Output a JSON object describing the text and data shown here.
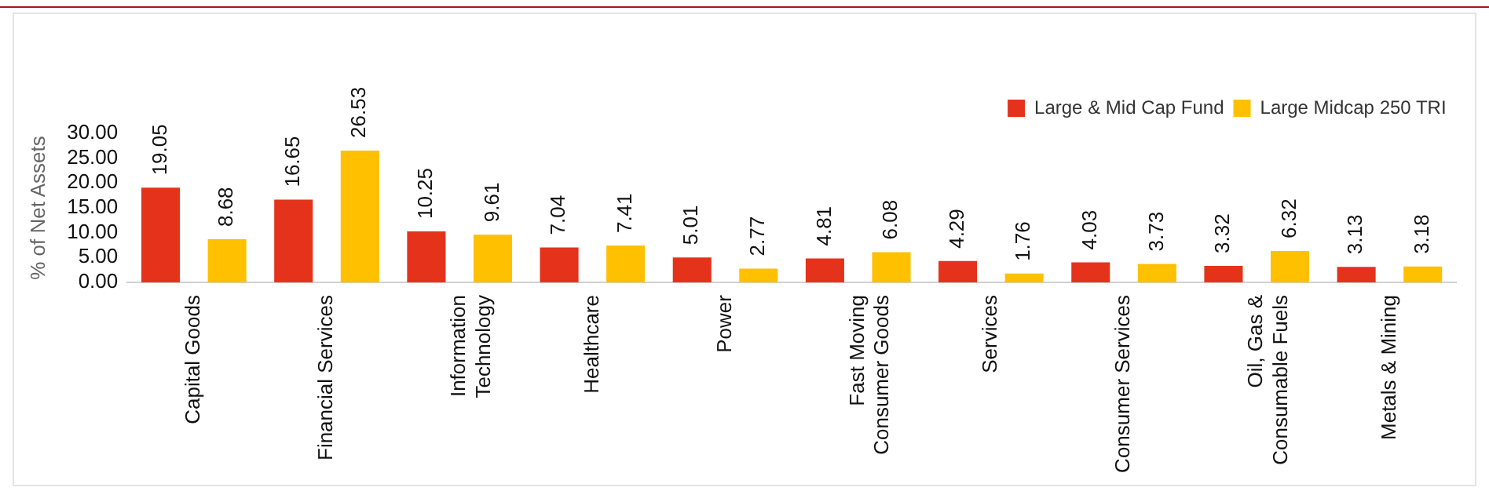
{
  "chart_data": {
    "type": "bar",
    "ylabel": "% of Net Assets",
    "categories": [
      "Capital Goods",
      "Financial Services",
      "Information Technology",
      "Healthcare",
      "Power",
      "Fast Moving Consumer Goods",
      "Services",
      "Consumer Services",
      "Oil, Gas & Consumable Fuels",
      "Metals & Mining"
    ],
    "series": [
      {
        "name": "Large & Mid Cap Fund",
        "color": "#e5321b",
        "values": [
          19.05,
          16.65,
          10.25,
          7.04,
          5.01,
          4.81,
          4.29,
          4.03,
          3.32,
          3.13
        ]
      },
      {
        "name": "Large Midcap 250 TRI",
        "color": "#ffc000",
        "values": [
          8.68,
          26.53,
          9.61,
          7.41,
          2.77,
          6.08,
          1.76,
          3.73,
          6.32,
          3.18
        ]
      }
    ],
    "ylim": [
      0,
      30
    ],
    "yticks": [
      {
        "value": 0,
        "label": "0.00"
      },
      {
        "value": 5,
        "label": "5.00"
      },
      {
        "value": 10,
        "label": "10.00"
      },
      {
        "value": 15,
        "label": "15.00"
      },
      {
        "value": 20,
        "label": "20.00"
      },
      {
        "value": 25,
        "label": "25.00"
      },
      {
        "value": 30,
        "label": "30.00"
      }
    ],
    "grid": false,
    "legend": "top right",
    "data_labels": true
  }
}
